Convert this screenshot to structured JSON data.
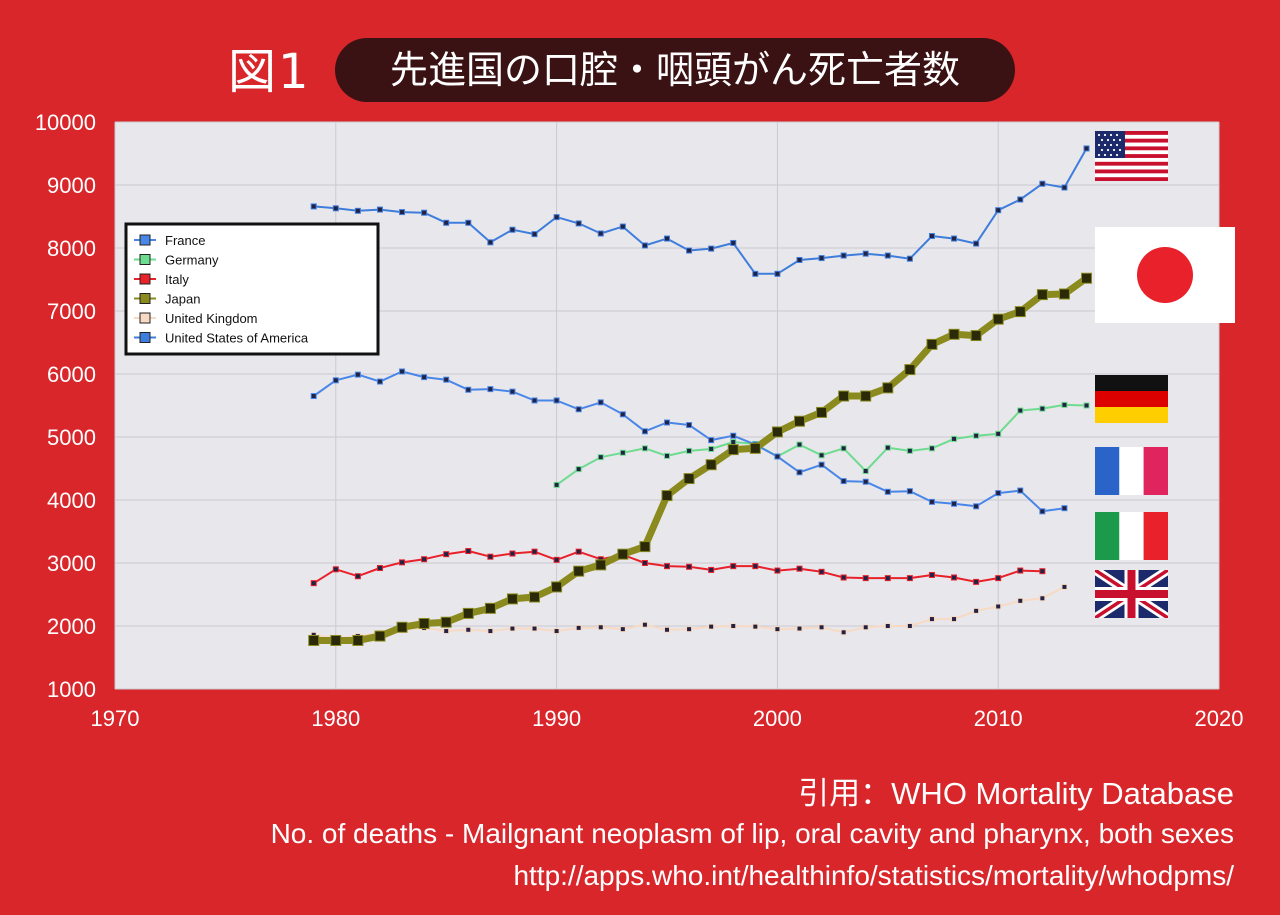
{
  "header": {
    "figure_label": "図1",
    "title": "先進国の口腔・咽頭がん死亡者数"
  },
  "footer": {
    "source": "引用：WHO Mortality Database",
    "description": "No. of deaths - Mailgnant neoplasm of lip, oral cavity and pharynx, both sexes",
    "url": "http://apps.who.int/healthinfo/statistics/mortality/whodpms/"
  },
  "flags": [
    "united-states",
    "japan",
    "germany",
    "france",
    "italy",
    "united-kingdom"
  ],
  "chart_data": {
    "type": "line",
    "title": "",
    "xlabel": "",
    "ylabel": "",
    "xlim": [
      1970,
      2020
    ],
    "ylim": [
      1000,
      10000
    ],
    "x_ticks": [
      1970,
      1980,
      1990,
      2000,
      2010,
      2020
    ],
    "y_ticks": [
      1000,
      2000,
      3000,
      4000,
      5000,
      6000,
      7000,
      8000,
      9000,
      10000
    ],
    "grid": true,
    "legend_position": "top-left",
    "series": [
      {
        "name": "France",
        "color": "#4a86e8",
        "x": [
          1979,
          1980,
          1981,
          1982,
          1983,
          1984,
          1985,
          1986,
          1987,
          1988,
          1989,
          1990,
          1991,
          1992,
          1993,
          1994,
          1995,
          1996,
          1997,
          1998,
          1999,
          2000,
          2001,
          2002,
          2003,
          2004,
          2005,
          2006,
          2007,
          2008,
          2009,
          2010,
          2011,
          2012,
          2013
        ],
        "values": [
          5650,
          5900,
          5990,
          5880,
          6040,
          5950,
          5910,
          5750,
          5760,
          5720,
          5580,
          5580,
          5440,
          5550,
          5360,
          5090,
          5230,
          5190,
          4950,
          5020,
          4880,
          4690,
          4440,
          4560,
          4300,
          4290,
          4130,
          4140,
          3970,
          3940,
          3900,
          4110,
          4150,
          3820,
          3870
        ]
      },
      {
        "name": "Germany",
        "color": "#6edb8f",
        "x": [
          1990,
          1991,
          1992,
          1993,
          1994,
          1995,
          1996,
          1997,
          1998,
          1999,
          2000,
          2001,
          2002,
          2003,
          2004,
          2005,
          2006,
          2007,
          2008,
          2009,
          2010,
          2011,
          2012,
          2013,
          2014
        ],
        "values": [
          4240,
          4490,
          4680,
          4750,
          4820,
          4700,
          4780,
          4810,
          4920,
          4890,
          4690,
          4880,
          4710,
          4820,
          4460,
          4830,
          4780,
          4820,
          4970,
          5020,
          5050,
          5420,
          5450,
          5510,
          5500
        ]
      },
      {
        "name": "Italy",
        "color": "#e8212b",
        "x": [
          1979,
          1980,
          1981,
          1982,
          1983,
          1984,
          1985,
          1986,
          1987,
          1988,
          1989,
          1990,
          1991,
          1992,
          1993,
          1994,
          1995,
          1996,
          1997,
          1998,
          1999,
          2000,
          2001,
          2002,
          2003,
          2004,
          2005,
          2006,
          2007,
          2008,
          2009,
          2010,
          2011,
          2012
        ],
        "values": [
          2680,
          2900,
          2790,
          2920,
          3010,
          3060,
          3140,
          3190,
          3100,
          3150,
          3180,
          3050,
          3180,
          3060,
          3130,
          3000,
          2950,
          2940,
          2890,
          2950,
          2950,
          2880,
          2910,
          2860,
          2770,
          2760,
          2760,
          2760,
          2810,
          2770,
          2700,
          2760,
          2880,
          2870
        ]
      },
      {
        "name": "Japan",
        "color": "#8a8a1e",
        "x": [
          1979,
          1980,
          1981,
          1982,
          1983,
          1984,
          1985,
          1986,
          1987,
          1988,
          1989,
          1990,
          1991,
          1992,
          1993,
          1994,
          1995,
          1996,
          1997,
          1998,
          1999,
          2000,
          2001,
          2002,
          2003,
          2004,
          2005,
          2006,
          2007,
          2008,
          2009,
          2010,
          2011,
          2012,
          2013,
          2014
        ],
        "values": [
          1770,
          1770,
          1770,
          1840,
          1980,
          2040,
          2060,
          2200,
          2280,
          2430,
          2460,
          2620,
          2870,
          2970,
          3140,
          3260,
          4070,
          4340,
          4560,
          4800,
          4820,
          5080,
          5250,
          5390,
          5650,
          5650,
          5780,
          6070,
          6470,
          6630,
          6610,
          6870,
          6990,
          7260,
          7270,
          7520
        ]
      },
      {
        "name": "United Kingdom",
        "color": "#f7d9c4",
        "x": [
          1979,
          1980,
          1981,
          1982,
          1983,
          1984,
          1985,
          1986,
          1987,
          1988,
          1989,
          1990,
          1991,
          1992,
          1993,
          1994,
          1995,
          1996,
          1997,
          1998,
          1999,
          2000,
          2001,
          2002,
          2003,
          2004,
          2005,
          2006,
          2007,
          2008,
          2009,
          2010,
          2011,
          2012,
          2013
        ],
        "values": [
          1860,
          1800,
          1840,
          1890,
          1940,
          1970,
          1920,
          1940,
          1920,
          1960,
          1960,
          1920,
          1970,
          1980,
          1950,
          2020,
          1940,
          1950,
          1990,
          2000,
          1990,
          1950,
          1960,
          1980,
          1900,
          1980,
          2000,
          2000,
          2110,
          2110,
          2240,
          2310,
          2400,
          2440,
          2620
        ]
      },
      {
        "name": "United States of America",
        "color": "#3f7ddc",
        "x": [
          1979,
          1980,
          1981,
          1982,
          1983,
          1984,
          1985,
          1986,
          1987,
          1988,
          1989,
          1990,
          1991,
          1992,
          1993,
          1994,
          1995,
          1996,
          1997,
          1998,
          1999,
          2000,
          2001,
          2002,
          2003,
          2004,
          2005,
          2006,
          2007,
          2008,
          2009,
          2010,
          2011,
          2012,
          2013,
          2014
        ],
        "values": [
          8660,
          8630,
          8590,
          8610,
          8570,
          8560,
          8400,
          8400,
          8090,
          8290,
          8220,
          8490,
          8390,
          8230,
          8340,
          8040,
          8150,
          7960,
          7990,
          8080,
          7590,
          7590,
          7810,
          7840,
          7880,
          7910,
          7880,
          7830,
          8190,
          8150,
          8070,
          8600,
          8770,
          9020,
          8960,
          9580
        ]
      }
    ]
  }
}
